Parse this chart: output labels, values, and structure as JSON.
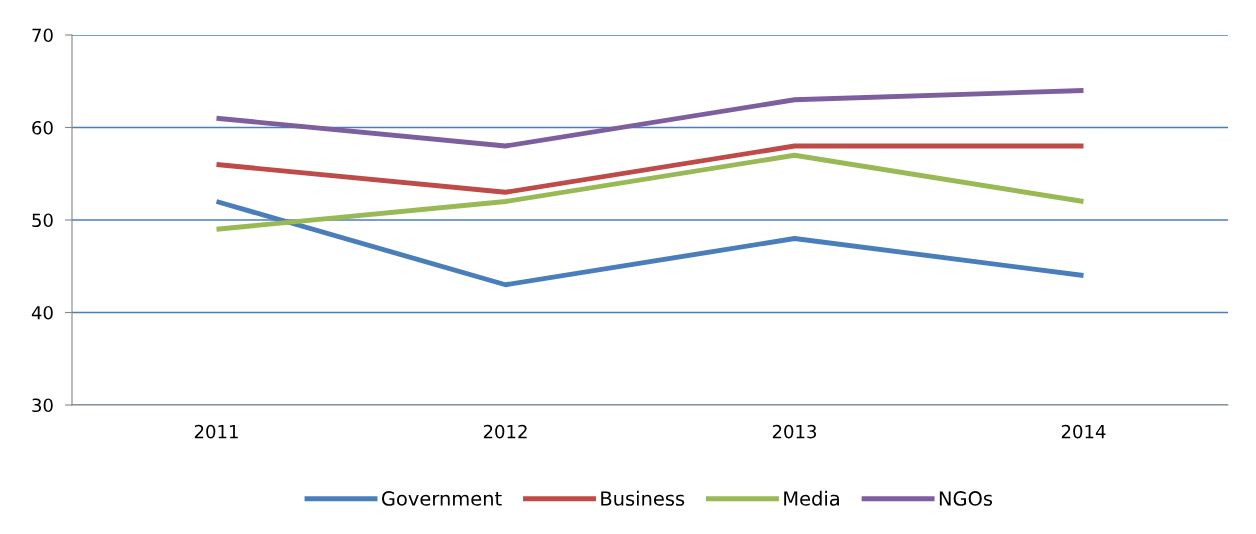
{
  "chart_data": {
    "type": "line",
    "categories": [
      "2011",
      "2012",
      "2013",
      "2014"
    ],
    "series": [
      {
        "name": "Government",
        "color": "#4a7ebb",
        "values": [
          52,
          43,
          48,
          44
        ]
      },
      {
        "name": "Business",
        "color": "#be4b48",
        "values": [
          56,
          53,
          58,
          58
        ]
      },
      {
        "name": "Media",
        "color": "#98b954",
        "values": [
          49,
          52,
          57,
          52
        ]
      },
      {
        "name": "NGOs",
        "color": "#7d5fa0",
        "values": [
          61,
          58,
          63,
          64
        ]
      }
    ],
    "ylim": [
      30,
      70
    ],
    "yticks": [
      30,
      40,
      50,
      60,
      70
    ],
    "grid": "y",
    "legend": "bottom",
    "marker": "none",
    "line_style": "solid"
  }
}
